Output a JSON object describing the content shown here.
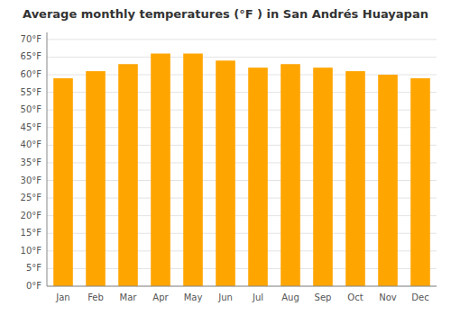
{
  "chart_data": {
    "type": "bar",
    "title": "Average monthly temperatures (°F ) in San Andrés Huayapan",
    "categories": [
      "Jan",
      "Feb",
      "Mar",
      "Apr",
      "May",
      "Jun",
      "Jul",
      "Aug",
      "Sep",
      "Oct",
      "Nov",
      "Dec"
    ],
    "values": [
      59,
      61,
      63,
      66,
      66,
      64,
      62,
      63,
      62,
      61,
      60,
      59
    ],
    "color": "#FFA500",
    "ylim": [
      0,
      72
    ],
    "yticks": [
      {
        "value": 0,
        "label": "0°F"
      },
      {
        "value": 5,
        "label": "5°F"
      },
      {
        "value": 10,
        "label": "10°F"
      },
      {
        "value": 15,
        "label": "15°F"
      },
      {
        "value": 20,
        "label": "20°F"
      },
      {
        "value": 25,
        "label": "25°F"
      },
      {
        "value": 30,
        "label": "30°F"
      },
      {
        "value": 35,
        "label": "35°F"
      },
      {
        "value": 40,
        "label": "40°F"
      },
      {
        "value": 45,
        "label": "45°F"
      },
      {
        "value": 50,
        "label": "50°F"
      },
      {
        "value": 55,
        "label": "55°F"
      },
      {
        "value": 60,
        "label": "60°F"
      },
      {
        "value": 65,
        "label": "65°F"
      },
      {
        "value": 70,
        "label": "70°F"
      }
    ],
    "grid": true
  }
}
